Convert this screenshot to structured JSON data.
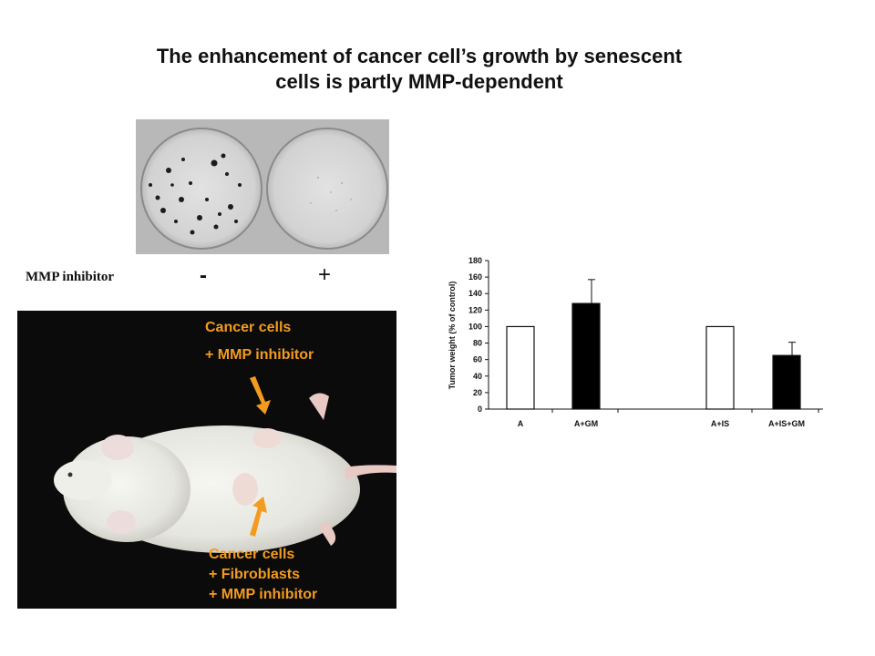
{
  "title": {
    "line1": "The enhancement of cancer cell’s growth by senescent",
    "line2": "cells is partly MMP-dependent"
  },
  "dish_row": {
    "label": "MMP inhibitor",
    "left_sign": "-",
    "right_sign": "+"
  },
  "mouse_photo": {
    "top_label": [
      "Cancer cells",
      "+ MMP inhibitor"
    ],
    "bottom_label": [
      "Cancer cells",
      "+ Fibroblasts",
      "+ MMP inhibitor"
    ],
    "label_color": "#f39b1f"
  },
  "chart_data": {
    "type": "bar",
    "ylabel": "Tumor weight (% of control)",
    "ylim": [
      0,
      180
    ],
    "yticks": [
      0,
      20,
      40,
      60,
      80,
      100,
      120,
      140,
      160,
      180
    ],
    "categories": [
      "A",
      "A+GM",
      "A+IS",
      "A+IS+GM"
    ],
    "values": [
      100,
      128,
      100,
      65
    ],
    "errors": [
      0,
      29,
      0,
      16
    ],
    "fills": [
      "#ffffff",
      "#000000",
      "#ffffff",
      "#000000"
    ],
    "grid": false
  }
}
